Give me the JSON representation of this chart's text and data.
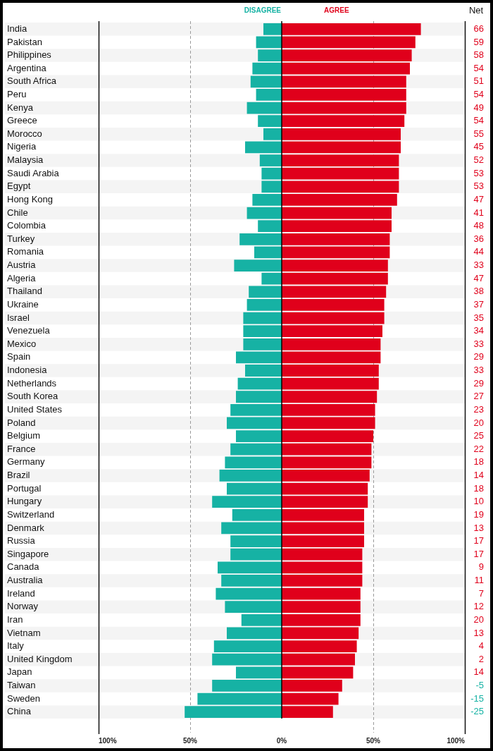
{
  "chart_data": {
    "type": "bar",
    "orientation": "horizontal",
    "stacked": true,
    "categories": [
      "India",
      "Pakistan",
      "Philippines",
      "Argentina",
      "South Africa",
      "Peru",
      "Kenya",
      "Greece",
      "Morocco",
      "Nigeria",
      "Malaysia",
      "Saudi Arabia",
      "Egypt",
      "Hong Kong",
      "Chile",
      "Colombia",
      "Turkey",
      "Romania",
      "Austria",
      "Algeria",
      "Thailand",
      "Ukraine",
      "Israel",
      "Venezuela",
      "Mexico",
      "Spain",
      "Indonesia",
      "Netherlands",
      "South Korea",
      "United States",
      "Poland",
      "Belgium",
      "France",
      "Germany",
      "Brazil",
      "Portugal",
      "Hungary",
      "Switzerland",
      "Denmark",
      "Russia",
      "Singapore",
      "Canada",
      "Australia",
      "Ireland",
      "Norway",
      "Iran",
      "Vietnam",
      "Italy",
      "United Kingdom",
      "Japan",
      "Taiwan",
      "Sweden",
      "China"
    ],
    "series": [
      {
        "name": "DISAGREE",
        "color": "#16b2a4",
        "values": [
          -10,
          -14,
          -13,
          -16,
          -17,
          -14,
          -19,
          -13,
          -10,
          -20,
          -12,
          -11,
          -11,
          -16,
          -19,
          -13,
          -23,
          -15,
          -26,
          -11,
          -18,
          -19,
          -21,
          -21,
          -21,
          -25,
          -20,
          -24,
          -25,
          -28,
          -30,
          -25,
          -28,
          -31,
          -34,
          -30,
          -38,
          -27,
          -33,
          -28,
          -28,
          -35,
          -33,
          -36,
          -31,
          -22,
          -30,
          -37,
          -38,
          -25,
          -38,
          -46,
          -53
        ]
      },
      {
        "name": "AGREE",
        "color": "#e0001b",
        "values": [
          76,
          73,
          71,
          70,
          68,
          68,
          68,
          67,
          65,
          65,
          64,
          64,
          64,
          63,
          60,
          60,
          59,
          59,
          58,
          58,
          57,
          56,
          56,
          55,
          54,
          54,
          53,
          53,
          52,
          51,
          51,
          50,
          49,
          49,
          48,
          47,
          47,
          45,
          45,
          45,
          44,
          44,
          44,
          43,
          43,
          43,
          42,
          41,
          40,
          39,
          33,
          31,
          28
        ]
      }
    ],
    "xlim": [
      -100,
      100
    ],
    "xticks": [
      {
        "value": -100,
        "label": "100%"
      },
      {
        "value": -50,
        "label": "50%"
      },
      {
        "value": 0,
        "label": "0%"
      },
      {
        "value": 50,
        "label": "50%"
      },
      {
        "value": 100,
        "label": "100%"
      }
    ],
    "grid": "x",
    "legend": "top",
    "annotations": [
      "Net",
      "66",
      "59",
      "58",
      "54",
      "51",
      "54",
      "49",
      "54",
      "55",
      "45",
      "52",
      "53",
      "53",
      "47",
      "41",
      "48",
      "36",
      "44",
      "33",
      "47",
      "38",
      "37",
      "35",
      "34",
      "33",
      "29",
      "33",
      "29",
      "27",
      "23",
      "20",
      "25",
      "22",
      "18",
      "14",
      "18",
      "10",
      "19",
      "13",
      "17",
      "17",
      "9",
      "11",
      "7",
      "12",
      "20",
      "13",
      "4",
      "2",
      "14",
      "-5",
      "-15",
      "-25"
    ]
  }
}
